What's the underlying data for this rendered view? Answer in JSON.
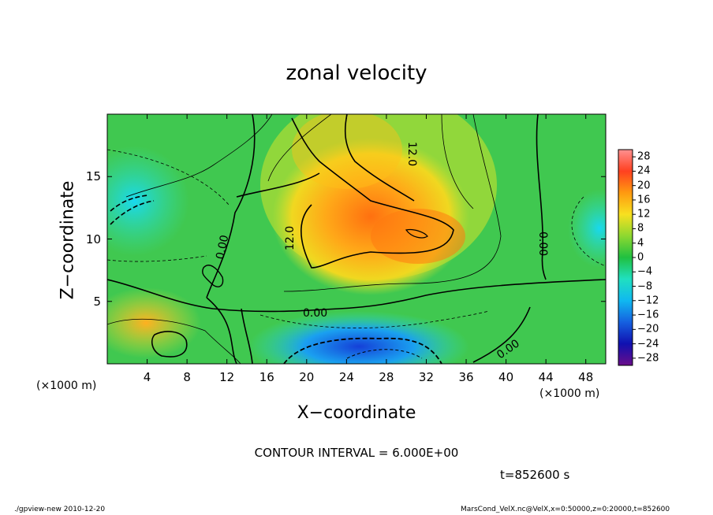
{
  "chart_data": {
    "type": "heatmap",
    "title": "zonal velocity",
    "xlabel": "X−coordinate",
    "ylabel": "Z−coordinate",
    "x_unit_left": "(×1000 m)",
    "x_unit_right": "(×1000 m)",
    "xlim": [
      0,
      50
    ],
    "ylim": [
      0,
      20
    ],
    "x_ticks": [
      "4",
      "8",
      "12",
      "16",
      "20",
      "24",
      "28",
      "32",
      "36",
      "40",
      "44",
      "48"
    ],
    "y_ticks": [
      "5",
      "10",
      "15"
    ],
    "colorbar_ticks": [
      "28",
      "24",
      "20",
      "16",
      "12",
      "8",
      "4",
      "0",
      "−4",
      "−8",
      "−12",
      "−16",
      "−20",
      "−24",
      "−28"
    ],
    "colorbar_range": [
      -30,
      30
    ],
    "contour_labels": [
      "12.0",
      "12.0",
      "0.00",
      "0.00",
      "0.00",
      "0.00"
    ],
    "contour_interval_text": "CONTOUR INTERVAL = 6.000E+00",
    "time_text": "t=852600  s",
    "colors": {
      "negative_strong": "#3030d0",
      "neutral": "#30c040",
      "positive_strong": "#ff7010"
    }
  },
  "footer": {
    "left": "./gpview-new  2010-12-20",
    "right": "MarsCond_VelX.nc@VelX,x=0:50000,z=0:20000,t=852600"
  }
}
